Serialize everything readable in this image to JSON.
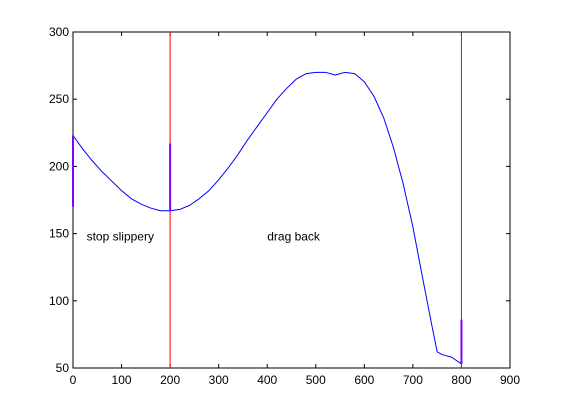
{
  "chart_data": {
    "type": "line",
    "title": "",
    "xlabel": "",
    "ylabel": "",
    "xlim": [
      0,
      900
    ],
    "ylim": [
      50,
      300
    ],
    "xticks": [
      0,
      100,
      200,
      300,
      400,
      500,
      600,
      700,
      800,
      900
    ],
    "yticks": [
      50,
      100,
      150,
      200,
      250,
      300
    ],
    "grid": false,
    "legend": "none",
    "series": [
      {
        "color": "#0000ff",
        "x": [
          0,
          20,
          40,
          60,
          80,
          100,
          120,
          140,
          160,
          180,
          200,
          220,
          240,
          260,
          280,
          300,
          320,
          340,
          360,
          380,
          400,
          420,
          440,
          460,
          480,
          500,
          520,
          540,
          560,
          580,
          600,
          620,
          640,
          660,
          680,
          700,
          720,
          740,
          750,
          760,
          780,
          800
        ],
        "y": [
          223,
          213,
          204,
          196,
          189,
          182,
          176,
          172,
          169,
          167,
          167,
          168,
          171,
          176,
          182,
          190,
          199,
          209,
          220,
          230,
          240,
          250,
          258,
          265,
          269,
          270,
          270,
          268,
          270,
          269,
          263,
          252,
          236,
          214,
          187,
          155,
          117,
          80,
          62,
          60,
          58,
          53
        ]
      }
    ],
    "vertical_lines": [
      {
        "x": 200,
        "color": "#ff0000"
      },
      {
        "x": 800,
        "color": "#ff0000"
      }
    ],
    "vertical_segments": [
      {
        "x": 0,
        "y0": 170,
        "y1": 223,
        "color": "#7f00ff"
      },
      {
        "x": 200,
        "y0": 167,
        "y1": 217,
        "color": "#7f00ff"
      },
      {
        "x": 800,
        "y0": 53,
        "y1": 86,
        "color": "#7f00ff"
      }
    ],
    "annotations": [
      {
        "text": "stop slippery",
        "x": 28,
        "y": 148
      },
      {
        "text": "drag back",
        "x": 400,
        "y": 148
      }
    ]
  }
}
